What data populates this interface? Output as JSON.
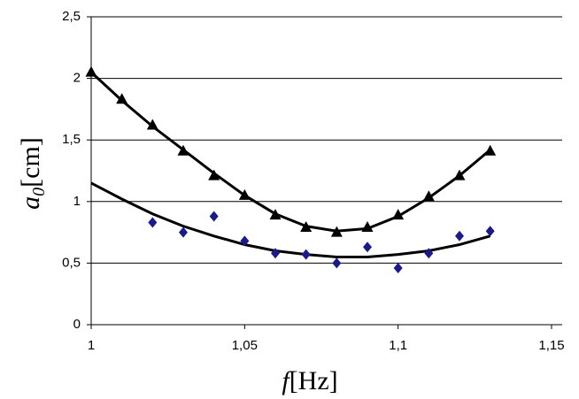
{
  "chart_data": {
    "type": "scatter",
    "xlabel": {
      "symbol": "f",
      "unit": "[Hz]"
    },
    "ylabel": {
      "symbol": "a",
      "subscript": "0",
      "unit": "[cm]"
    },
    "xlim": [
      1,
      1.15
    ],
    "xticks": [
      1,
      {
        "value": 1.05,
        "label": "1,05"
      },
      {
        "value": 1.1,
        "label": "1,1"
      },
      {
        "value": 1.15,
        "label": "1,15"
      }
    ],
    "ylim": [
      0,
      2.5
    ],
    "yticks": [
      0,
      {
        "value": 0.5,
        "label": "0,5"
      },
      1,
      {
        "value": 1.5,
        "label": "1,5"
      },
      2,
      {
        "value": 2.5,
        "label": "2,5"
      }
    ],
    "grid": true,
    "series": [
      {
        "type": "line",
        "color": "#000000",
        "x": [
          1.0,
          1.01,
          1.02,
          1.03,
          1.04,
          1.05,
          1.06,
          1.07,
          1.08,
          1.09,
          1.1,
          1.11,
          1.12,
          1.13
        ],
        "values": [
          2.05,
          1.82,
          1.61,
          1.42,
          1.23,
          1.05,
          0.9,
          0.8,
          0.76,
          0.78,
          0.88,
          1.03,
          1.21,
          1.42
        ]
      },
      {
        "type": "line",
        "color": "#000000",
        "x": [
          1.0,
          1.01,
          1.02,
          1.03,
          1.04,
          1.05,
          1.06,
          1.07,
          1.08,
          1.09,
          1.1,
          1.11,
          1.12,
          1.13
        ],
        "values": [
          1.15,
          1.02,
          0.9,
          0.8,
          0.72,
          0.65,
          0.6,
          0.57,
          0.55,
          0.55,
          0.57,
          0.6,
          0.65,
          0.72
        ]
      },
      {
        "type": "scatter",
        "marker": "triangle",
        "color": "#000000",
        "x": [
          1.0,
          1.01,
          1.02,
          1.03,
          1.04,
          1.05,
          1.06,
          1.07,
          1.08,
          1.09,
          1.1,
          1.11,
          1.12,
          1.13
        ],
        "values": [
          2.05,
          1.83,
          1.62,
          1.41,
          1.21,
          1.05,
          0.89,
          0.79,
          0.75,
          0.79,
          0.89,
          1.04,
          1.21,
          1.41
        ]
      },
      {
        "type": "scatter",
        "marker": "diamond",
        "color": "#1a1a8c",
        "x": [
          1.02,
          1.03,
          1.04,
          1.05,
          1.06,
          1.07,
          1.08,
          1.09,
          1.1,
          1.11,
          1.12,
          1.13
        ],
        "values": [
          0.83,
          0.75,
          0.88,
          0.68,
          0.58,
          0.57,
          0.5,
          0.63,
          0.46,
          0.58,
          0.72,
          0.76
        ]
      }
    ]
  }
}
